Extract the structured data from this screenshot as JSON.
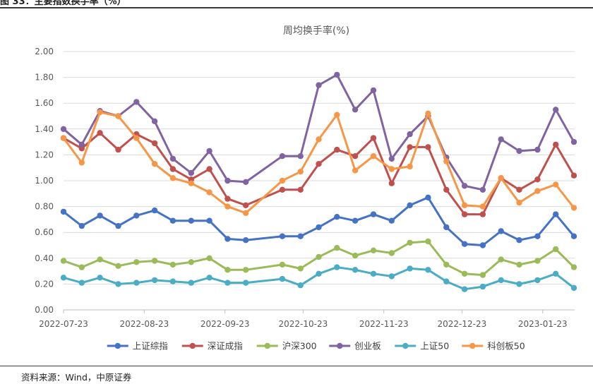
{
  "figure_caption": "图 33：主要指数换手率（%）",
  "source_note": "资料来源：Wind，中原证券",
  "chart_data": {
    "type": "line",
    "title": "周均换手率(%)",
    "xlabel": "",
    "ylabel": "",
    "ylim": [
      0,
      2.0
    ],
    "y_ticks": [
      "0.00",
      "0.20",
      "0.40",
      "0.60",
      "0.80",
      "1.00",
      "1.20",
      "1.40",
      "1.60",
      "1.80",
      "2.00"
    ],
    "x_ticks": [
      "2022-07-23",
      "2022-08-23",
      "2022-09-23",
      "2022-10-23",
      "2022-11-23",
      "2022-12-23",
      "2023-01-23"
    ],
    "grid": "horizontal",
    "legend_position": "bottom",
    "x": [
      "2022-07-23",
      "2022-07-30",
      "2022-08-06",
      "2022-08-13",
      "2022-08-20",
      "2022-08-27",
      "2022-09-03",
      "2022-09-10",
      "2022-09-17",
      "2022-09-24",
      "2022-10-01",
      "2022-10-15",
      "2022-10-22",
      "2022-10-29",
      "2022-11-05",
      "2022-11-12",
      "2022-11-19",
      "2022-11-26",
      "2022-12-03",
      "2022-12-10",
      "2022-12-17",
      "2022-12-24",
      "2022-12-31",
      "2023-01-07",
      "2023-01-14",
      "2023-01-21",
      "2023-01-28",
      "2023-02-04"
    ],
    "series": [
      {
        "name": "上证综指",
        "color": "#4472C4",
        "values": [
          0.76,
          0.65,
          0.73,
          0.65,
          0.73,
          0.77,
          0.69,
          0.69,
          0.69,
          0.55,
          0.54,
          0.57,
          0.57,
          0.64,
          0.72,
          0.69,
          0.74,
          0.69,
          0.81,
          0.87,
          0.64,
          0.51,
          0.5,
          0.61,
          0.54,
          0.57,
          0.74,
          0.57
        ]
      },
      {
        "name": "深证成指",
        "color": "#C0504D",
        "values": [
          1.33,
          1.25,
          1.37,
          1.24,
          1.36,
          1.29,
          1.09,
          1.01,
          1.09,
          0.86,
          0.81,
          0.93,
          0.93,
          1.13,
          1.24,
          1.19,
          1.33,
          0.98,
          1.26,
          1.26,
          0.93,
          0.74,
          0.74,
          1.02,
          0.93,
          1.01,
          1.28,
          1.04
        ]
      },
      {
        "name": "沪深300",
        "color": "#9BBB59",
        "values": [
          0.38,
          0.33,
          0.39,
          0.34,
          0.37,
          0.38,
          0.35,
          0.37,
          0.4,
          0.31,
          0.31,
          0.35,
          0.32,
          0.41,
          0.48,
          0.42,
          0.46,
          0.44,
          0.52,
          0.53,
          0.35,
          0.28,
          0.27,
          0.39,
          0.35,
          0.38,
          0.47,
          0.33
        ]
      },
      {
        "name": "创业板",
        "color": "#8064A2",
        "values": [
          1.4,
          1.28,
          1.54,
          1.5,
          1.61,
          1.46,
          1.17,
          1.06,
          1.23,
          1.0,
          0.99,
          1.19,
          1.19,
          1.74,
          1.82,
          1.55,
          1.7,
          1.17,
          1.36,
          1.5,
          1.18,
          0.96,
          0.93,
          1.32,
          1.23,
          1.24,
          1.55,
          1.3
        ]
      },
      {
        "name": "上证50",
        "color": "#4BACC6",
        "values": [
          0.25,
          0.21,
          0.25,
          0.2,
          0.21,
          0.23,
          0.22,
          0.21,
          0.25,
          0.21,
          0.21,
          0.24,
          0.19,
          0.28,
          0.33,
          0.31,
          0.28,
          0.26,
          0.32,
          0.31,
          0.22,
          0.16,
          0.18,
          0.23,
          0.2,
          0.23,
          0.28,
          0.17
        ]
      },
      {
        "name": "科创板50",
        "color": "#F79646",
        "values": [
          1.33,
          1.14,
          1.53,
          1.5,
          1.33,
          1.13,
          1.02,
          0.98,
          0.91,
          0.8,
          0.75,
          1.0,
          1.07,
          1.32,
          1.51,
          1.08,
          1.19,
          1.09,
          1.11,
          1.52,
          1.15,
          0.81,
          0.8,
          1.02,
          0.83,
          0.92,
          0.97,
          0.79
        ]
      }
    ]
  }
}
